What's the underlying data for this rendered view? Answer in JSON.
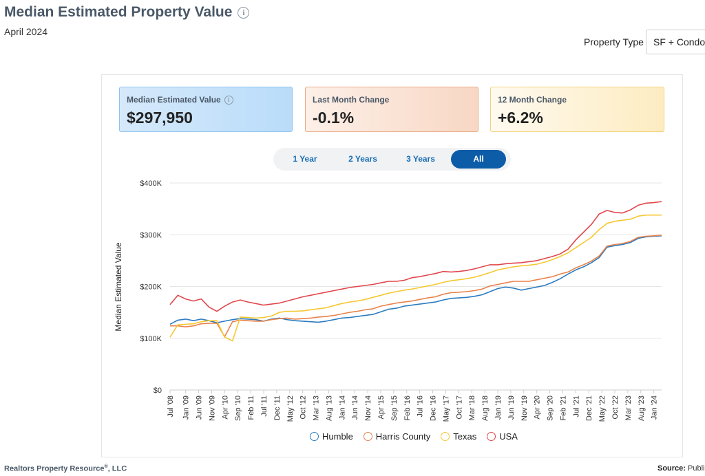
{
  "header": {
    "title": "Median Estimated Property Value",
    "subtitle": "April 2024",
    "property_type_label": "Property Type",
    "property_type_value": "SF + Condo/"
  },
  "cards": [
    {
      "label": "Median Estimated Value",
      "value": "$297,950"
    },
    {
      "label": "Last Month Change",
      "value": "-0.1%"
    },
    {
      "label": "12 Month Change",
      "value": "+6.2%"
    }
  ],
  "ranges": {
    "options": [
      "1 Year",
      "2 Years",
      "3 Years",
      "All"
    ],
    "selected": "All"
  },
  "footer": {
    "left": "Realtors Property Resource",
    "left_suffix": ", LLC",
    "right_bold": "Source:",
    "right_text": " Public"
  },
  "colors": {
    "Humble": "#2b7bc0",
    "Harris County": "#e8824a",
    "Texas": "#f5c832",
    "USA": "#e0474c"
  },
  "chart_data": {
    "type": "line",
    "title": "",
    "xlabel": "",
    "ylabel": "Median Estimated Value",
    "ylim": [
      0,
      400000
    ],
    "y_ticks": [
      "$0",
      "$100K",
      "$200K",
      "$300K",
      "$400K"
    ],
    "x_ticks": [
      "Jul '08",
      "Jan '09",
      "Jun '09",
      "Nov '09",
      "Apr '10",
      "Sep '10",
      "Feb '11",
      "Jul '11",
      "Dec '11",
      "May '12",
      "Oct '12",
      "Mar '13",
      "Aug '13",
      "Jan '14",
      "Jun '14",
      "Nov '14",
      "Apr '15",
      "Sep '15",
      "Feb '16",
      "Jul '16",
      "Dec '16",
      "May '17",
      "Oct '17",
      "Mar '18",
      "Aug '18",
      "Jan '19",
      "Jun '19",
      "Nov '19",
      "Apr '20",
      "Sep '20",
      "Feb '21",
      "Jul '21",
      "Dec '21",
      "May '22",
      "Oct '22",
      "Mar '23",
      "Aug '23",
      "Jan '24"
    ],
    "x": [
      "2008-07",
      "2008-10",
      "2009-01",
      "2009-04",
      "2009-07",
      "2009-10",
      "2010-01",
      "2010-04",
      "2010-07",
      "2010-10",
      "2011-01",
      "2011-04",
      "2011-07",
      "2011-10",
      "2012-01",
      "2012-04",
      "2012-07",
      "2012-10",
      "2013-01",
      "2013-04",
      "2013-07",
      "2013-10",
      "2014-01",
      "2014-04",
      "2014-07",
      "2014-10",
      "2015-01",
      "2015-04",
      "2015-07",
      "2015-10",
      "2016-01",
      "2016-04",
      "2016-07",
      "2016-10",
      "2017-01",
      "2017-04",
      "2017-07",
      "2017-10",
      "2018-01",
      "2018-04",
      "2018-07",
      "2018-10",
      "2019-01",
      "2019-04",
      "2019-07",
      "2019-10",
      "2020-01",
      "2020-04",
      "2020-07",
      "2020-10",
      "2021-01",
      "2021-04",
      "2021-07",
      "2021-10",
      "2022-01",
      "2022-04",
      "2022-07",
      "2022-10",
      "2023-01",
      "2023-04",
      "2023-07",
      "2023-10",
      "2024-01",
      "2024-04"
    ],
    "series": [
      {
        "name": "Humble",
        "values": [
          127000,
          135000,
          137000,
          134000,
          137000,
          134000,
          130000,
          133000,
          136000,
          138000,
          137000,
          136000,
          133000,
          137000,
          139000,
          136000,
          134000,
          133000,
          132000,
          131000,
          133000,
          136000,
          139000,
          140000,
          142000,
          144000,
          146000,
          151000,
          156000,
          158000,
          162000,
          164000,
          166000,
          168000,
          170000,
          174000,
          177000,
          178000,
          179000,
          181000,
          184000,
          190000,
          196000,
          199000,
          197000,
          193000,
          196000,
          199000,
          202000,
          208000,
          215000,
          224000,
          232000,
          238000,
          246000,
          256000,
          276000,
          279000,
          281000,
          285000,
          293000,
          296000,
          297000,
          297950
        ]
      },
      {
        "name": "Harris County",
        "values": [
          124000,
          124000,
          122000,
          124000,
          128000,
          129000,
          129000,
          103000,
          132000,
          135000,
          134000,
          133000,
          133000,
          136000,
          138000,
          139000,
          137000,
          138000,
          139000,
          141000,
          142000,
          144000,
          147000,
          150000,
          152000,
          155000,
          157000,
          162000,
          165000,
          168000,
          170000,
          172000,
          175000,
          178000,
          180000,
          185000,
          188000,
          189000,
          190000,
          192000,
          195000,
          201000,
          204000,
          207000,
          210000,
          210000,
          210000,
          213000,
          216000,
          219000,
          224000,
          228000,
          236000,
          242000,
          249000,
          259000,
          278000,
          281000,
          283000,
          287000,
          295000,
          297000,
          298000,
          299000
        ]
      },
      {
        "name": "Texas",
        "values": [
          102000,
          126000,
          127000,
          128000,
          132000,
          134000,
          134000,
          102000,
          95000,
          141000,
          140000,
          139000,
          140000,
          143000,
          150000,
          152000,
          152000,
          153000,
          155000,
          157000,
          159000,
          163000,
          167000,
          170000,
          172000,
          175000,
          179000,
          183000,
          187000,
          190000,
          193000,
          195000,
          198000,
          201000,
          204000,
          208000,
          211000,
          213000,
          215000,
          218000,
          222000,
          227000,
          232000,
          235000,
          238000,
          240000,
          241000,
          243000,
          247000,
          252000,
          258000,
          265000,
          275000,
          285000,
          295000,
          310000,
          322000,
          326000,
          328000,
          330000,
          336000,
          338000,
          338000,
          338000
        ]
      },
      {
        "name": "USA",
        "values": [
          165000,
          183000,
          176000,
          172000,
          176000,
          160000,
          152000,
          162000,
          170000,
          174000,
          170000,
          167000,
          164000,
          166000,
          168000,
          172000,
          176000,
          180000,
          183000,
          186000,
          189000,
          192000,
          195000,
          198000,
          200000,
          202000,
          204000,
          207000,
          210000,
          210000,
          212000,
          217000,
          219000,
          222000,
          225000,
          229000,
          228000,
          229000,
          231000,
          234000,
          238000,
          242000,
          242000,
          244000,
          245000,
          246000,
          248000,
          250000,
          254000,
          258000,
          263000,
          272000,
          290000,
          305000,
          320000,
          340000,
          347000,
          343000,
          342000,
          348000,
          357000,
          361000,
          362000,
          364000
        ]
      }
    ],
    "grid": true,
    "legend": "bottom"
  }
}
